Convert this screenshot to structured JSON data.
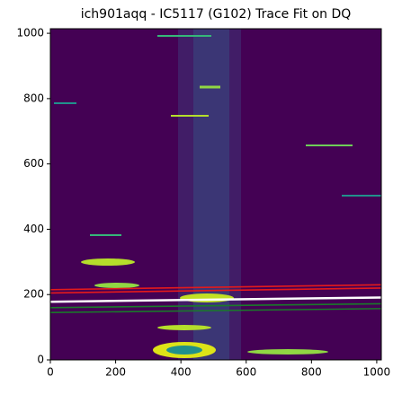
{
  "chart_data": {
    "type": "image",
    "title": "ich901aqq - IC5117 (G102) Trace Fit on DQ",
    "xlim": [
      0,
      1014
    ],
    "ylim": [
      0,
      1014
    ],
    "xticks": [
      0,
      200,
      400,
      600,
      800,
      1000
    ],
    "yticks": [
      0,
      200,
      400,
      600,
      800,
      1000
    ],
    "background": "#440154",
    "series": [
      {
        "color": "#e31a1c",
        "x": [
          0,
          1014
        ],
        "values": [
          215,
          230
        ]
      },
      {
        "color": "#e31a1c",
        "x": [
          0,
          1014
        ],
        "values": [
          205,
          220
        ]
      },
      {
        "color": "#ffffff",
        "x": [
          0,
          1014
        ],
        "values": [
          178,
          191
        ]
      },
      {
        "color": "#1a7a2a",
        "x": [
          0,
          1014
        ],
        "values": [
          160,
          172
        ]
      },
      {
        "color": "#1a7a2a",
        "x": [
          0,
          1014
        ],
        "values": [
          145,
          157
        ]
      }
    ]
  }
}
